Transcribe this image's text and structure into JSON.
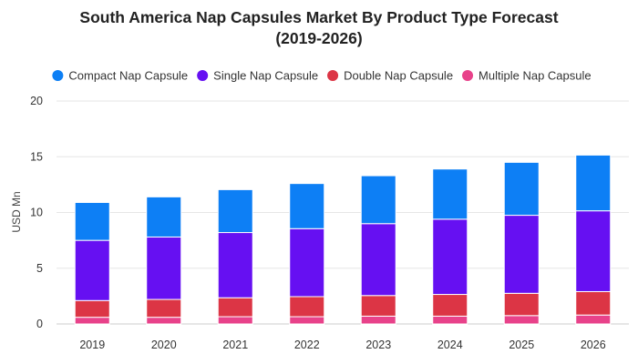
{
  "chart_data": {
    "type": "bar",
    "stacked": true,
    "title": "South America Nap Capsules Market By Product Type Forecast (2019-2026)",
    "title_lines": [
      "South America Nap Capsules Market By Product Type Forecast",
      "(2019-2026)"
    ],
    "xlabel": "",
    "ylabel": "USD Mn",
    "ylim": [
      0,
      20
    ],
    "yticks": [
      0,
      5,
      10,
      15,
      20
    ],
    "grid": true,
    "legend_position": "top",
    "categories": [
      "2019",
      "2020",
      "2021",
      "2022",
      "2023",
      "2024",
      "2025",
      "2026"
    ],
    "series": [
      {
        "name": "Multiple Nap Capsule",
        "color": "#e8428a",
        "values": [
          0.6,
          0.6,
          0.65,
          0.65,
          0.7,
          0.7,
          0.75,
          0.8
        ]
      },
      {
        "name": "Double Nap Capsule",
        "color": "#dc3545",
        "values": [
          1.5,
          1.6,
          1.7,
          1.8,
          1.85,
          1.95,
          2.0,
          2.1
        ]
      },
      {
        "name": "Single Nap Capsule",
        "color": "#6610f2",
        "values": [
          5.4,
          5.6,
          5.85,
          6.1,
          6.45,
          6.75,
          7.0,
          7.25
        ]
      },
      {
        "name": "Compact Nap Capsule",
        "color": "#0d7ff5",
        "values": [
          3.4,
          3.6,
          3.85,
          4.05,
          4.3,
          4.5,
          4.75,
          5.0
        ]
      }
    ],
    "legend_order": [
      "Compact Nap Capsule",
      "Single Nap Capsule",
      "Double Nap Capsule",
      "Multiple Nap Capsule"
    ]
  }
}
